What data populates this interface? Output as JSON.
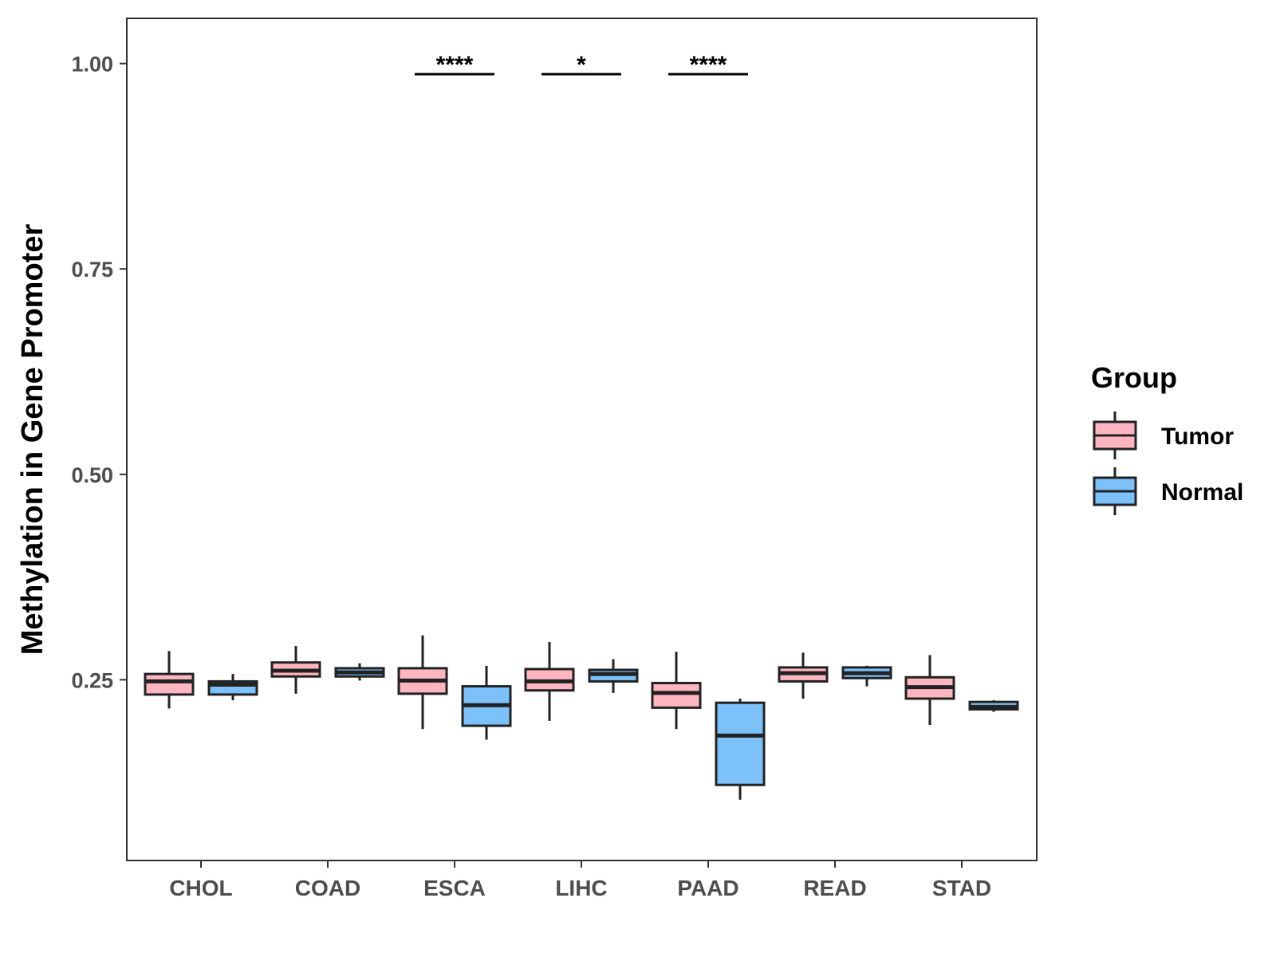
{
  "chart_data": {
    "type": "boxplot",
    "title": "",
    "xlabel": "",
    "ylabel": "Methylation in Gene Promoter",
    "ylim": [
      0.03,
      1.055
    ],
    "yticks": [
      0.25,
      0.5,
      0.75,
      1.0
    ],
    "ytick_labels": [
      "0.25",
      "0.50",
      "0.75",
      "1.00"
    ],
    "categories": [
      "CHOL",
      "COAD",
      "ESCA",
      "LIHC",
      "PAAD",
      "READ",
      "STAD"
    ],
    "grid": false,
    "legend": {
      "title": "Group",
      "position": "right",
      "entries": [
        {
          "name": "Tumor",
          "color": "#FFB6C1"
        },
        {
          "name": "Normal",
          "color": "#7CC1FA"
        }
      ]
    },
    "series": [
      {
        "name": "Tumor",
        "color": "#FFB6C1",
        "boxes": [
          {
            "min": 0.215,
            "q1": 0.232,
            "median": 0.248,
            "q3": 0.257,
            "max": 0.285
          },
          {
            "min": 0.233,
            "q1": 0.254,
            "median": 0.261,
            "q3": 0.271,
            "max": 0.291
          },
          {
            "min": 0.19,
            "q1": 0.233,
            "median": 0.249,
            "q3": 0.264,
            "max": 0.304
          },
          {
            "min": 0.2,
            "q1": 0.237,
            "median": 0.248,
            "q3": 0.263,
            "max": 0.296
          },
          {
            "min": 0.19,
            "q1": 0.216,
            "median": 0.234,
            "q3": 0.246,
            "max": 0.284
          },
          {
            "min": 0.227,
            "q1": 0.248,
            "median": 0.258,
            "q3": 0.265,
            "max": 0.283
          },
          {
            "min": 0.195,
            "q1": 0.227,
            "median": 0.241,
            "q3": 0.253,
            "max": 0.28
          }
        ]
      },
      {
        "name": "Normal",
        "color": "#7CC1FA",
        "boxes": [
          {
            "min": 0.225,
            "q1": 0.232,
            "median": 0.244,
            "q3": 0.248,
            "max": 0.257
          },
          {
            "min": 0.249,
            "q1": 0.254,
            "median": 0.259,
            "q3": 0.264,
            "max": 0.27
          },
          {
            "min": 0.177,
            "q1": 0.194,
            "median": 0.219,
            "q3": 0.242,
            "max": 0.267
          },
          {
            "min": 0.234,
            "q1": 0.248,
            "median": 0.257,
            "q3": 0.262,
            "max": 0.275
          },
          {
            "min": 0.104,
            "q1": 0.122,
            "median": 0.182,
            "q3": 0.222,
            "max": 0.227
          },
          {
            "min": 0.242,
            "q1": 0.252,
            "median": 0.258,
            "q3": 0.265,
            "max": 0.267
          },
          {
            "min": 0.211,
            "q1": 0.214,
            "median": 0.217,
            "q3": 0.223,
            "max": 0.225
          }
        ]
      }
    ],
    "annotations": [
      {
        "category": "ESCA",
        "label": "****",
        "y": 0.987
      },
      {
        "category": "LIHC",
        "label": "*",
        "y": 0.987
      },
      {
        "category": "PAAD",
        "label": "****",
        "y": 0.987
      }
    ]
  }
}
